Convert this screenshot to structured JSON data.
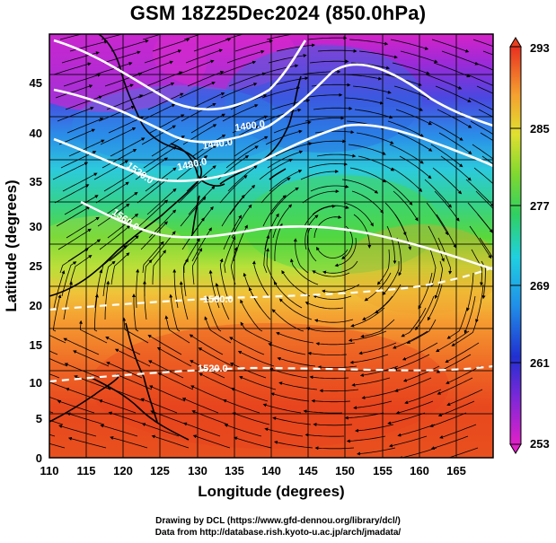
{
  "title": "GSM 18Z25Dec2024 (850.0hPa)",
  "map": {
    "xlabel": "Longitude (degrees)",
    "ylabel": "Latitude  (degrees)",
    "x_ticks": [
      "110",
      "115",
      "120",
      "125",
      "130",
      "135",
      "140",
      "145",
      "150",
      "155",
      "160",
      "165"
    ],
    "y_ticks": [
      "0",
      "5",
      "10",
      "15",
      "20",
      "25",
      "30",
      "35",
      "40",
      "45"
    ],
    "lon_range": [
      110,
      170
    ],
    "lat_range": [
      0,
      50
    ],
    "contour_labels": [
      "1400.0",
      "1440.0",
      "1480.0",
      "1520.0",
      "1560.0",
      "1560.0",
      "1520.0"
    ],
    "colors": {
      "magenta": "#e21ccf",
      "blue": "#1f3fd8",
      "cyan": "#22c8e6",
      "green": "#3fd23a",
      "yellow": "#d8e23a",
      "orange": "#f5a02e",
      "red": "#e8401e"
    }
  },
  "colorbar": {
    "ticks": [
      "293",
      "285",
      "277",
      "269",
      "261",
      "253"
    ],
    "range": [
      253,
      293
    ]
  },
  "credits": [
    "Drawing by DCL (https://www.gfd-dennou.org/library/dcl/)",
    "Data from http://database.rish.kyoto-u.ac.jp/arch/jmadata/"
  ]
}
